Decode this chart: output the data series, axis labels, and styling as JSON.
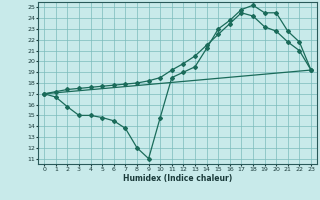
{
  "title": "",
  "xlabel": "Humidex (Indice chaleur)",
  "bg_color": "#c8eaea",
  "grid_color": "#7bbcbc",
  "line_color": "#1a6b5a",
  "xlim": [
    -0.5,
    23.5
  ],
  "ylim": [
    10.5,
    25.5
  ],
  "xticks": [
    0,
    1,
    2,
    3,
    4,
    5,
    6,
    7,
    8,
    9,
    10,
    11,
    12,
    13,
    14,
    15,
    16,
    17,
    18,
    19,
    20,
    21,
    22,
    23
  ],
  "yticks": [
    11,
    12,
    13,
    14,
    15,
    16,
    17,
    18,
    19,
    20,
    21,
    22,
    23,
    24,
    25
  ],
  "series1_x": [
    0,
    1,
    2,
    3,
    4,
    5,
    6,
    7,
    8,
    9,
    10,
    11,
    12,
    13,
    14,
    15,
    16,
    17,
    18,
    19,
    20,
    21,
    22,
    23
  ],
  "series1_y": [
    17.0,
    16.7,
    15.8,
    15.0,
    15.0,
    14.8,
    14.5,
    13.8,
    12.0,
    11.0,
    14.8,
    18.5,
    19.0,
    19.5,
    21.2,
    23.0,
    23.8,
    24.8,
    25.2,
    24.5,
    24.5,
    22.8,
    21.8,
    19.2
  ],
  "series2_x": [
    0,
    23
  ],
  "series2_y": [
    17.0,
    19.2
  ],
  "series3_x": [
    0,
    1,
    2,
    3,
    4,
    5,
    6,
    7,
    8,
    9,
    10,
    11,
    12,
    13,
    14,
    15,
    16,
    17,
    18,
    19,
    20,
    21,
    22,
    23
  ],
  "series3_y": [
    17.0,
    17.2,
    17.4,
    17.5,
    17.6,
    17.7,
    17.8,
    17.9,
    18.0,
    18.2,
    18.5,
    19.2,
    19.8,
    20.5,
    21.5,
    22.5,
    23.5,
    24.5,
    24.2,
    23.2,
    22.8,
    21.8,
    21.0,
    19.2
  ]
}
